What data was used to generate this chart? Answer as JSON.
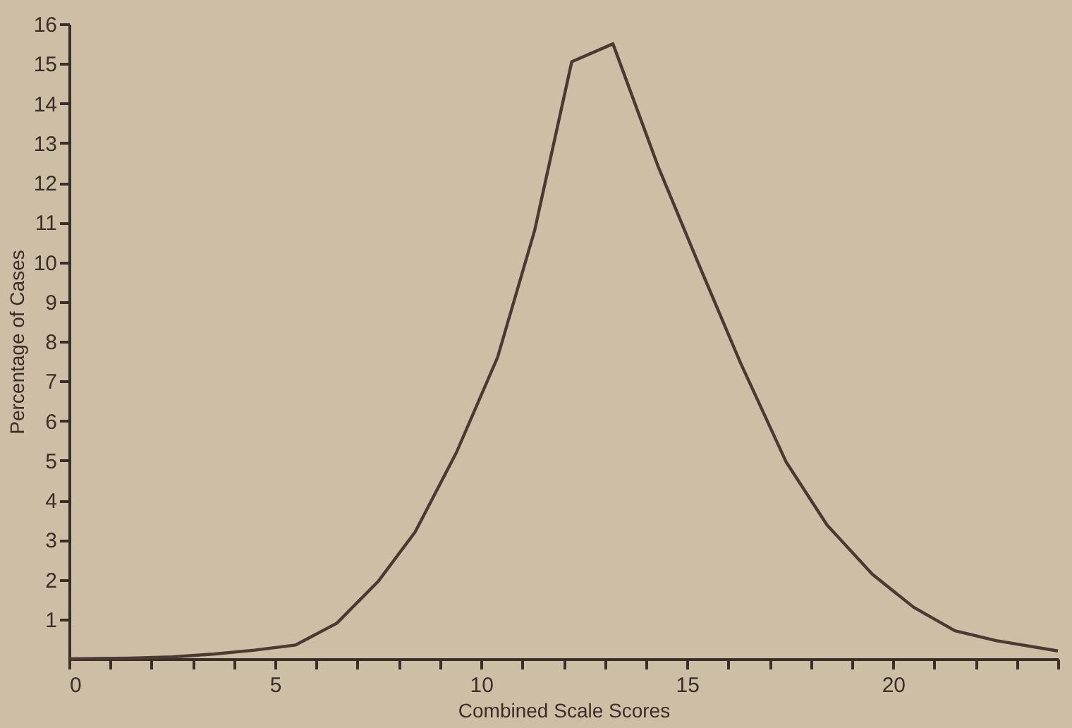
{
  "chart_data": {
    "type": "line",
    "xlabel": "Combined Scale Scores",
    "ylabel": "Percentage of Cases",
    "x": [
      0,
      1.5,
      2.5,
      3.5,
      4.5,
      5.5,
      6.5,
      7.5,
      8.4,
      9.4,
      10.4,
      11.3,
      12.2,
      13.2,
      14.3,
      15.3,
      16.3,
      17.4,
      18.4,
      19.5,
      20.5,
      21.5,
      22.5,
      24
    ],
    "series": [
      {
        "color": "#4a3a33",
        "values": [
          0,
          0.02,
          0.05,
          0.12,
          0.22,
          0.35,
          0.9,
          1.95,
          3.2,
          5.2,
          7.6,
          10.8,
          15.05,
          15.5,
          12.4,
          9.9,
          7.45,
          4.97,
          3.37,
          2.13,
          1.3,
          0.71,
          0.46,
          0.2
        ]
      }
    ],
    "xlim": [
      0,
      24
    ],
    "xticks": [
      0,
      {
        "value": 1,
        "label": null
      },
      {
        "value": 2,
        "label": null
      },
      {
        "value": 3,
        "label": null
      },
      {
        "value": 4,
        "label": null
      },
      5,
      {
        "value": 6,
        "label": null
      },
      {
        "value": 7,
        "label": null
      },
      {
        "value": 8,
        "label": null
      },
      {
        "value": 9,
        "label": null
      },
      10,
      {
        "value": 11,
        "label": null
      },
      {
        "value": 12,
        "label": null
      },
      {
        "value": 13,
        "label": null
      },
      {
        "value": 14,
        "label": null
      },
      15,
      {
        "value": 16,
        "label": null
      },
      {
        "value": 17,
        "label": null
      },
      {
        "value": 18,
        "label": null
      },
      {
        "value": 19,
        "label": null
      },
      20,
      {
        "value": 21,
        "label": null
      },
      {
        "value": 22,
        "label": null
      },
      {
        "value": 23,
        "label": null
      },
      {
        "value": 24,
        "label": null
      }
    ],
    "ylim": [
      0,
      16
    ],
    "yticks": [
      1,
      2,
      3,
      4,
      5,
      6,
      7,
      8,
      9,
      10,
      11,
      12,
      13,
      14,
      15,
      16
    ],
    "grid": false,
    "marker": "none",
    "line_style": "solid"
  }
}
